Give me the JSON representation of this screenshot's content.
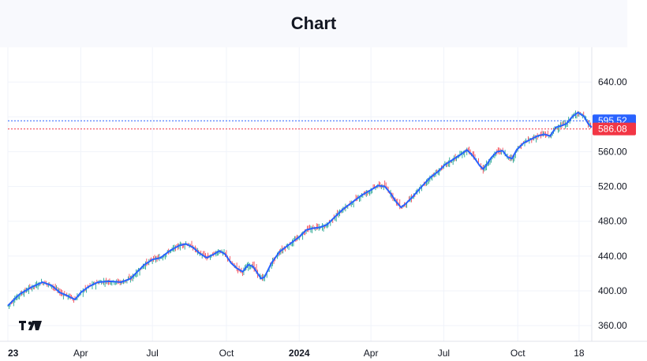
{
  "header": {
    "title": "Chart"
  },
  "chart_data": {
    "type": "line",
    "ylim": [
      342,
      680
    ],
    "grid": true,
    "x_ticks": [
      {
        "label": "23",
        "index": 0,
        "bold": true
      },
      {
        "label": "Apr",
        "index": 63
      },
      {
        "label": "Jul",
        "index": 125
      },
      {
        "label": "Oct",
        "index": 189
      },
      {
        "label": "2024",
        "index": 252,
        "bold": true
      },
      {
        "label": "Apr",
        "index": 314
      },
      {
        "label": "Jul",
        "index": 377
      },
      {
        "label": "Oct",
        "index": 441
      },
      {
        "label": "18",
        "index": 494
      }
    ],
    "y_ticks": [
      {
        "value": 360,
        "label": "360.00"
      },
      {
        "value": 400,
        "label": "400.00"
      },
      {
        "value": 440,
        "label": "440.00"
      },
      {
        "value": 480,
        "label": "480.00"
      },
      {
        "value": 520,
        "label": "520.00"
      },
      {
        "value": 560,
        "label": "560.00"
      },
      {
        "value": 600,
        "label": ""
      },
      {
        "value": 640,
        "label": "640.00"
      }
    ],
    "price_lines": [
      {
        "value": 595.52,
        "label": "595.52",
        "color": "#2962ff"
      },
      {
        "value": 586.08,
        "label": "586.08",
        "color": "#f23645"
      }
    ],
    "line_color": "#2962ff",
    "up_color": "#089981",
    "down_color": "#f23645",
    "series": [
      {
        "values": [
          [
            0,
            383
          ],
          [
            10,
            396
          ],
          [
            20,
            404
          ],
          [
            30,
            410
          ],
          [
            38,
            406
          ],
          [
            45,
            398
          ],
          [
            52,
            394
          ],
          [
            58,
            390
          ],
          [
            63,
            398
          ],
          [
            70,
            405
          ],
          [
            78,
            410
          ],
          [
            88,
            411
          ],
          [
            98,
            410
          ],
          [
            106,
            414
          ],
          [
            112,
            422
          ],
          [
            118,
            430
          ],
          [
            125,
            436
          ],
          [
            132,
            438
          ],
          [
            140,
            446
          ],
          [
            148,
            452
          ],
          [
            154,
            454
          ],
          [
            160,
            450
          ],
          [
            166,
            443
          ],
          [
            172,
            438
          ],
          [
            178,
            442
          ],
          [
            183,
            446
          ],
          [
            188,
            442
          ],
          [
            193,
            432
          ],
          [
            198,
            426
          ],
          [
            203,
            422
          ],
          [
            208,
            430
          ],
          [
            212,
            428
          ],
          [
            216,
            420
          ],
          [
            219,
            414
          ],
          [
            222,
            416
          ],
          [
            228,
            432
          ],
          [
            235,
            445
          ],
          [
            242,
            452
          ],
          [
            248,
            458
          ],
          [
            252,
            462
          ],
          [
            258,
            470
          ],
          [
            264,
            472
          ],
          [
            270,
            473
          ],
          [
            276,
            476
          ],
          [
            282,
            484
          ],
          [
            290,
            494
          ],
          [
            298,
            502
          ],
          [
            306,
            510
          ],
          [
            314,
            516
          ],
          [
            320,
            521
          ],
          [
            326,
            520
          ],
          [
            331,
            512
          ],
          [
            336,
            502
          ],
          [
            340,
            496
          ],
          [
            344,
            500
          ],
          [
            350,
            508
          ],
          [
            358,
            520
          ],
          [
            365,
            530
          ],
          [
            372,
            537
          ],
          [
            378,
            545
          ],
          [
            385,
            551
          ],
          [
            392,
            557
          ],
          [
            397,
            562
          ],
          [
            401,
            557
          ],
          [
            405,
            550
          ],
          [
            408,
            544
          ],
          [
            411,
            540
          ],
          [
            414,
            545
          ],
          [
            418,
            553
          ],
          [
            423,
            560
          ],
          [
            428,
            561
          ],
          [
            432,
            554
          ],
          [
            436,
            552
          ],
          [
            440,
            562
          ],
          [
            446,
            570
          ],
          [
            452,
            574
          ],
          [
            458,
            578
          ],
          [
            464,
            580
          ],
          [
            469,
            578
          ],
          [
            474,
            588
          ],
          [
            479,
            590
          ],
          [
            483,
            592
          ],
          [
            488,
            600
          ],
          [
            493,
            605
          ],
          [
            498,
            601
          ],
          [
            502,
            592
          ],
          [
            505,
            588
          ]
        ]
      }
    ]
  }
}
